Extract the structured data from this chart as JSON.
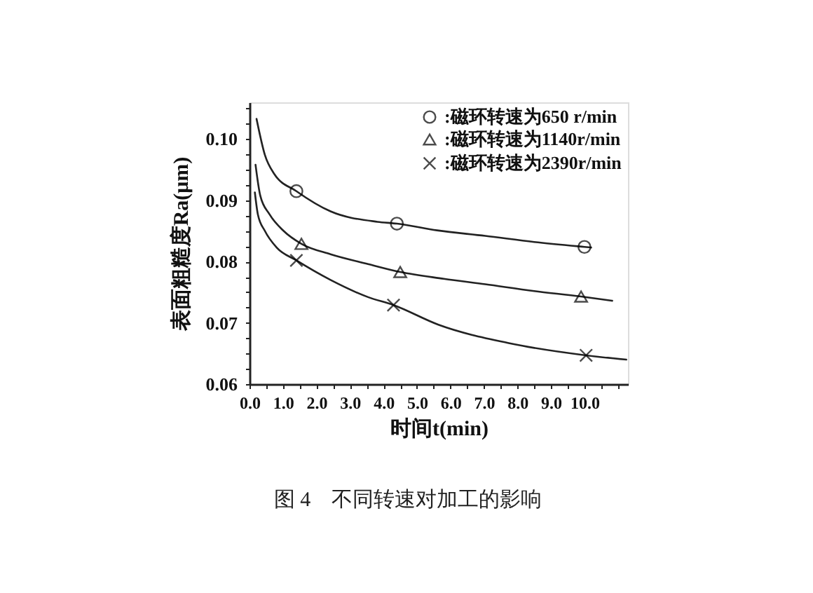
{
  "chart_data": {
    "type": "line",
    "xlabel": "时间t(min)",
    "ylabel": "表面粗糙度Ra(μm)",
    "annotations": [
      "图 4　不同转速对加工的影响"
    ],
    "xlim": [
      0,
      11.3
    ],
    "ylim": [
      0.06,
      0.106
    ],
    "xticks": [
      {
        "value": 0,
        "label": "0.0"
      },
      {
        "value": 0.5,
        "label": null
      },
      {
        "value": 1,
        "label": "1.0"
      },
      {
        "value": 1.5,
        "label": null
      },
      {
        "value": 2,
        "label": "2.0"
      },
      {
        "value": 2.5,
        "label": null
      },
      {
        "value": 3,
        "label": "3.0"
      },
      {
        "value": 3.5,
        "label": null
      },
      {
        "value": 4,
        "label": "4.0"
      },
      {
        "value": 4.5,
        "label": null
      },
      {
        "value": 5,
        "label": "5.0"
      },
      {
        "value": 5.5,
        "label": null
      },
      {
        "value": 6,
        "label": "6.0"
      },
      {
        "value": 6.5,
        "label": null
      },
      {
        "value": 7,
        "label": "7.0"
      },
      {
        "value": 7.5,
        "label": null
      },
      {
        "value": 8,
        "label": "8.0"
      },
      {
        "value": 8.5,
        "label": null
      },
      {
        "value": 9,
        "label": "9.0"
      },
      {
        "value": 9.5,
        "label": null
      },
      {
        "value": 10,
        "label": "10.0"
      },
      {
        "value": 10.5,
        "label": null
      },
      {
        "value": 11,
        "label": null
      }
    ],
    "yticks": [
      0.06,
      {
        "value": 0.0625,
        "label": null
      },
      {
        "value": 0.065,
        "label": null
      },
      {
        "value": 0.0675,
        "label": null
      },
      0.07,
      {
        "value": 0.0725,
        "label": null
      },
      {
        "value": 0.075,
        "label": null
      },
      {
        "value": 0.0775,
        "label": null
      },
      0.08,
      {
        "value": 0.0825,
        "label": null
      },
      {
        "value": 0.085,
        "label": null
      },
      {
        "value": 0.0875,
        "label": null
      },
      0.09,
      {
        "value": 0.0925,
        "label": null
      },
      {
        "value": 0.095,
        "label": null
      },
      {
        "value": 0.0975,
        "label": null
      },
      {
        "value": 0.1,
        "label": "0.10"
      },
      {
        "value": 0.1025,
        "label": null
      },
      {
        "value": 0.105,
        "label": null
      }
    ],
    "grid": false,
    "legend": "top right",
    "series": [
      {
        "name": ":磁环转速为650 r/min",
        "type": "scatter",
        "marker": "circle",
        "color": "#000000",
        "x": [
          1.4,
          4.4,
          10.0
        ],
        "values": [
          0.0915,
          0.0862,
          0.0824
        ]
      },
      {
        "name": ":磁环转速为1140r/min",
        "type": "scatter",
        "marker": "triangle",
        "color": "#000000",
        "x": [
          1.55,
          4.5,
          9.9
        ],
        "values": [
          0.0829,
          0.0783,
          0.0743
        ]
      },
      {
        "name": ":磁环转速为2390r/min",
        "type": "scatter",
        "marker": "cross",
        "color": "#000000",
        "x": [
          1.4,
          4.3,
          10.05
        ],
        "values": [
          0.0802,
          0.0729,
          0.0647
        ]
      },
      {
        "color": "#222222",
        "x": [
          0.21,
          0.46,
          0.74,
          1.4,
          2.42,
          3.82,
          4.4,
          5.6,
          7.04,
          8.5,
          10.0,
          10.2
        ],
        "values": [
          0.1033,
          0.0974,
          0.0943,
          0.0915,
          0.0882,
          0.0865,
          0.0862,
          0.0851,
          0.0842,
          0.0832,
          0.0824,
          0.0823
        ]
      },
      {
        "color": "#222222",
        "x": [
          0.18,
          0.32,
          0.6,
          1.02,
          1.55,
          2.42,
          3.54,
          4.5,
          5.8,
          7.04,
          8.5,
          9.9,
          10.83
        ],
        "values": [
          0.0958,
          0.0908,
          0.0877,
          0.085,
          0.0829,
          0.0812,
          0.0796,
          0.0783,
          0.0772,
          0.0763,
          0.0752,
          0.0743,
          0.0736
        ]
      },
      {
        "color": "#222222",
        "x": [
          0.16,
          0.25,
          0.46,
          0.81,
          1.4,
          2.42,
          3.54,
          4.3,
          5.64,
          7.74,
          10.05,
          11.25
        ],
        "values": [
          0.0913,
          0.0877,
          0.085,
          0.0823,
          0.0802,
          0.077,
          0.0742,
          0.0729,
          0.0697,
          0.0667,
          0.0647,
          0.064
        ]
      }
    ]
  }
}
